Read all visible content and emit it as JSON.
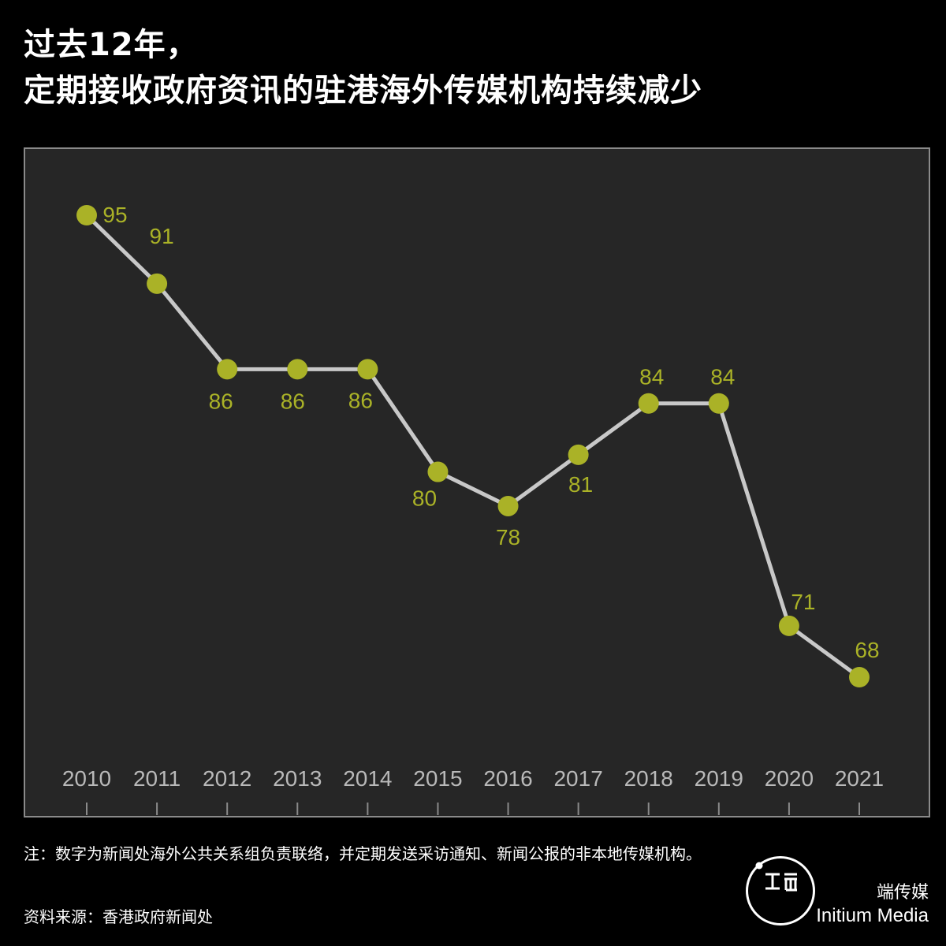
{
  "title": {
    "line1": "过去12年，",
    "line2": "定期接收政府资讯的驻港海外传媒机构持续减少"
  },
  "colors": {
    "background": "#000000",
    "plot_background": "#262626",
    "line": "#c8c8c8",
    "marker": "#aab227",
    "tick_text": "#b9b9b9"
  },
  "chart_data": {
    "type": "line",
    "categories": [
      "2010",
      "2011",
      "2012",
      "2013",
      "2014",
      "2015",
      "2016",
      "2017",
      "2018",
      "2019",
      "2020",
      "2021"
    ],
    "values": [
      95,
      91,
      86,
      86,
      86,
      80,
      78,
      81,
      84,
      84,
      71,
      68
    ],
    "grid": false,
    "legend": "none"
  },
  "note": "注：数字为新闻处海外公共关系组负责联络，并定期发送采访通知、新闻公报的非本地传媒机构。",
  "source": "资料来源：香港政府新闻处",
  "brand": {
    "name_cn": "端传媒",
    "name_en": "Initium Media",
    "logo_icon": "initium-logo-icon"
  }
}
